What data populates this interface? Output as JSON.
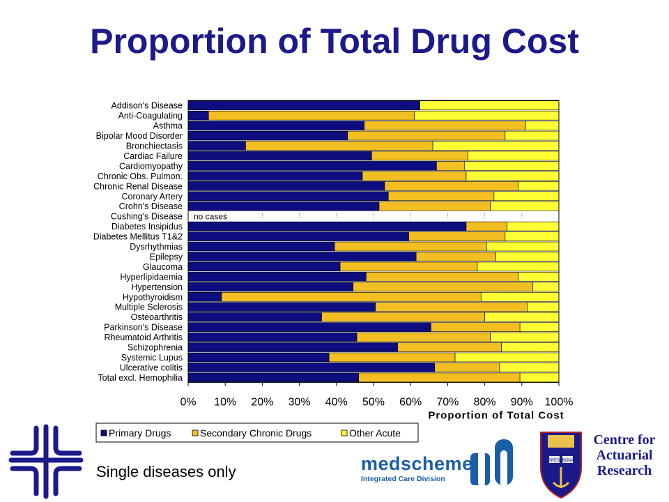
{
  "page": {
    "title": "Proportion of Total Drug Cost",
    "footnote": "Single diseases only",
    "institution": [
      "Centre for",
      "Actuarial",
      "Research"
    ],
    "brand": "medscheme",
    "brand_sub": "Integrated Care Division",
    "crest_text": [
      "SPES",
      "BONA"
    ]
  },
  "colors": {
    "title": "#1c1a8a",
    "primary": "#0d0d80",
    "secondary": "#f2be22",
    "other": "#ffff33",
    "brand_blue": "#1a5ea8"
  },
  "chart_data": {
    "type": "bar",
    "orientation": "horizontal",
    "stacked": true,
    "title": "",
    "xlabel": "Proportion of Total Cost",
    "ylabel": "",
    "xlim": [
      0,
      100
    ],
    "x_ticks": [
      "0%",
      "10%",
      "20%",
      "30%",
      "40%",
      "50%",
      "60%",
      "70%",
      "80%",
      "90%",
      "100%"
    ],
    "legend_position": "bottom-left",
    "categories": [
      "Addison's Disease",
      "Anti-Coagulating",
      "Asthma",
      "Bipolar Mood Disorder",
      "Bronchiectasis",
      "Cardiac Failure",
      "Cardiomyopathy",
      "Chronic Obs. Pulmon.",
      "Chronic Renal Disease",
      "Coronary Artery",
      "Crohn's Disease",
      "Cushing's Disease",
      "Diabetes Insipidus",
      "Diabetes Mellitus T1&2",
      "Dysrhythmias",
      "Epilepsy",
      "Glaucoma",
      "Hyperlipidaemia",
      "Hypertension",
      "Hypothyroidism",
      "Multiple Sclerosis",
      "Osteoarthritis",
      "Parkinson's Disease",
      "Rheumatoid Arthritis",
      "Schizophrenia",
      "Systemic Lupus",
      "Ulcerative colitis",
      "Total excl. Hemophilia"
    ],
    "series": [
      {
        "name": "Primary Drugs",
        "values": [
          62.5,
          5.5,
          47.5,
          43,
          15.5,
          49.5,
          67,
          47,
          53,
          54,
          51.5,
          null,
          75,
          59.5,
          39.5,
          61.5,
          41,
          48,
          44.5,
          9,
          50.5,
          36,
          65.5,
          45.5,
          56.5,
          38,
          66.5,
          46
        ]
      },
      {
        "name": "Secondary Chronic Drugs",
        "values": [
          0,
          55.5,
          43.5,
          42.5,
          50.5,
          26,
          7.5,
          28,
          36,
          28.5,
          30,
          null,
          11,
          26,
          41,
          21.5,
          37,
          41,
          48.5,
          70,
          41,
          44,
          24,
          36,
          28,
          34,
          17.5,
          43.5
        ]
      },
      {
        "name": "Other Acute",
        "values": [
          37.5,
          39,
          9,
          14.5,
          34,
          24.5,
          25.5,
          25,
          11,
          17.5,
          18.5,
          null,
          14,
          14.5,
          19.5,
          17,
          22,
          11,
          7,
          21,
          8.5,
          20,
          10.5,
          18.5,
          15.5,
          28,
          16,
          10.5
        ]
      }
    ],
    "annotations": [
      {
        "category": "Cushing's Disease",
        "text": "no cases"
      }
    ]
  }
}
